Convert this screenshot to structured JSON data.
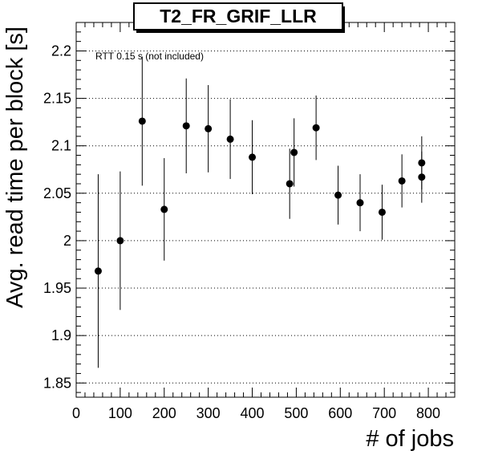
{
  "chart_data": {
    "type": "scatter",
    "title": "T2_FR_GRIF_LLR",
    "xlabel": "# of jobs",
    "ylabel": "Avg. read time per block [s]",
    "annotation": "RTT 0.15 s (not included)",
    "xlim": [
      0,
      860
    ],
    "ylim": [
      1.835,
      2.23
    ],
    "x_ticks": [
      "0",
      "100",
      "200",
      "300",
      "400",
      "500",
      "600",
      "700",
      "800"
    ],
    "y_ticks": [
      "1.85",
      "1.9",
      "1.95",
      "2",
      "2.05",
      "2.1",
      "2.15",
      "2.2"
    ],
    "grid": "y-major",
    "series": [
      {
        "marker": "circle",
        "color": "#000000",
        "points": [
          {
            "x": 50,
            "y": 1.968,
            "err": 0.102
          },
          {
            "x": 100,
            "y": 2.0,
            "err": 0.073
          },
          {
            "x": 150,
            "y": 2.126,
            "err": 0.068
          },
          {
            "x": 200,
            "y": 2.033,
            "err": 0.054
          },
          {
            "x": 250,
            "y": 2.121,
            "err": 0.05
          },
          {
            "x": 300,
            "y": 2.118,
            "err": 0.046
          },
          {
            "x": 350,
            "y": 2.107,
            "err": 0.042
          },
          {
            "x": 400,
            "y": 2.088,
            "err": 0.039
          },
          {
            "x": 485,
            "y": 2.06,
            "err": 0.037
          },
          {
            "x": 495,
            "y": 2.093,
            "err": 0.036
          },
          {
            "x": 545,
            "y": 2.119,
            "err": 0.034
          },
          {
            "x": 595,
            "y": 2.048,
            "err": 0.031
          },
          {
            "x": 645,
            "y": 2.04,
            "err": 0.03
          },
          {
            "x": 695,
            "y": 2.03,
            "err": 0.029
          },
          {
            "x": 740,
            "y": 2.063,
            "err": 0.028
          },
          {
            "x": 785,
            "y": 2.067,
            "err": 0.027
          },
          {
            "x": 785,
            "y": 2.082,
            "err": 0.028
          }
        ]
      }
    ]
  }
}
